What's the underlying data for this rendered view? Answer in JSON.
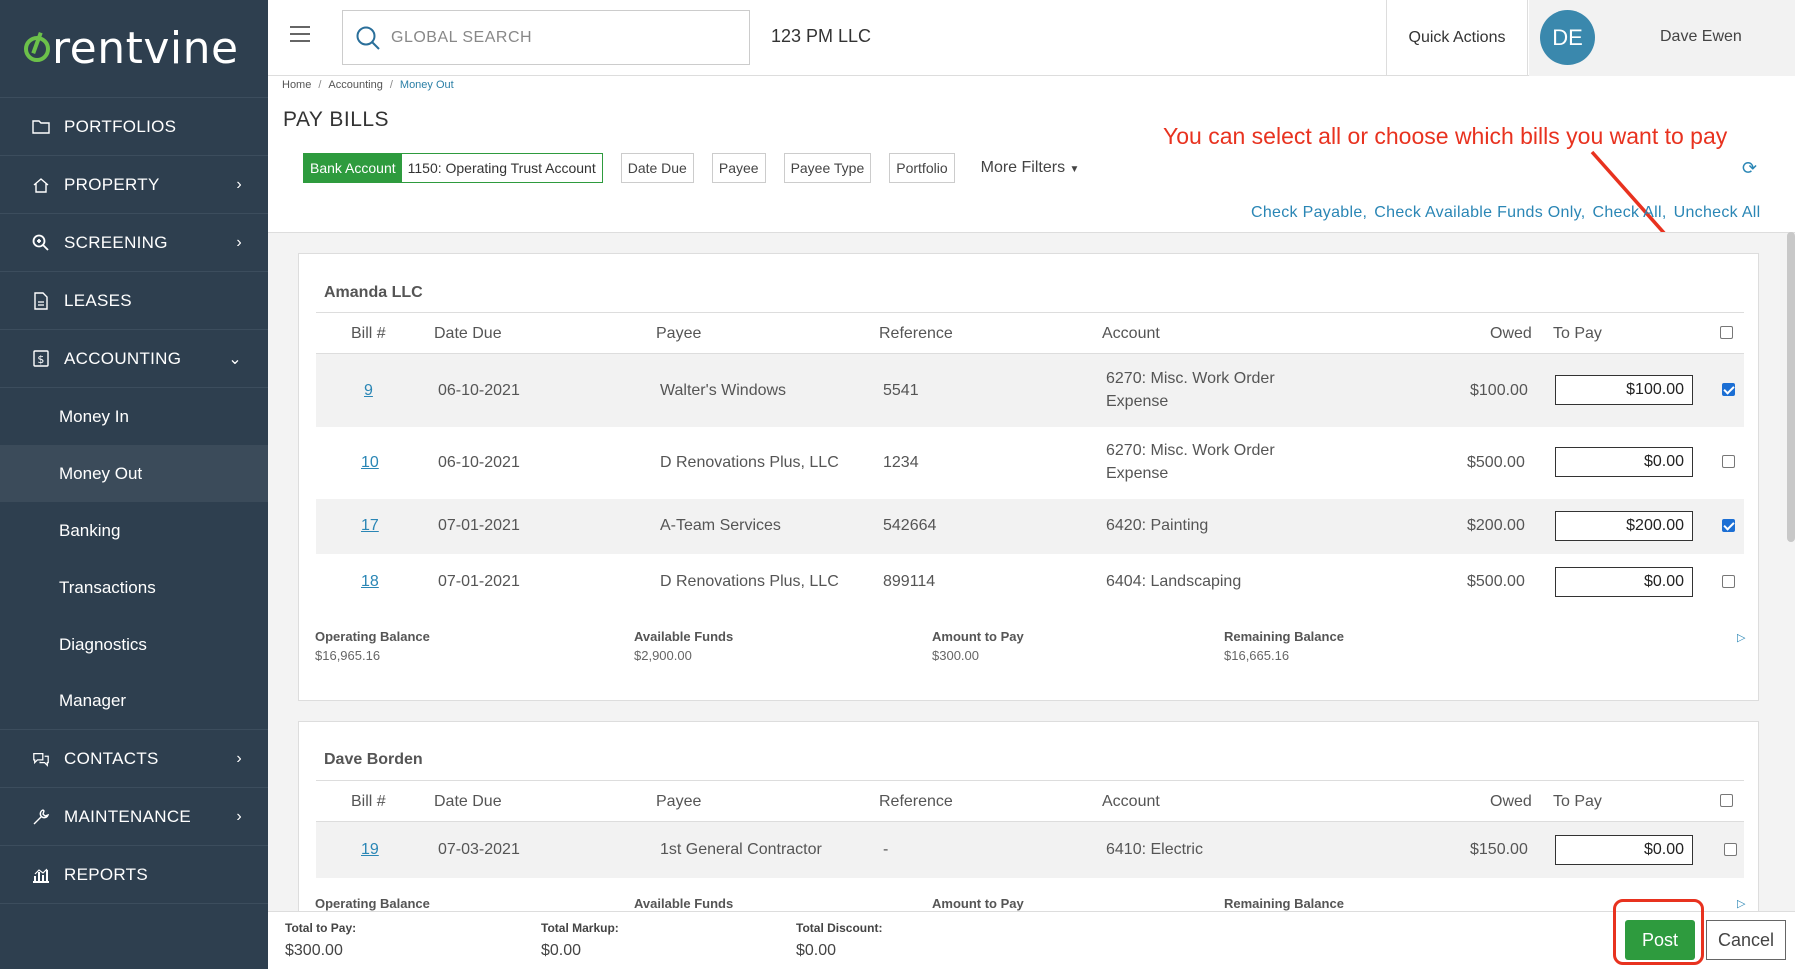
{
  "sidebar": {
    "brand": "rentvine",
    "items": [
      {
        "label": "PORTFOLIOS",
        "icon": "folder-icon"
      },
      {
        "label": "PROPERTY",
        "icon": "home-icon"
      },
      {
        "label": "SCREENING",
        "icon": "search-zoom-icon"
      },
      {
        "label": "LEASES",
        "icon": "document-icon"
      },
      {
        "label": "ACCOUNTING",
        "icon": "dollar-doc-icon"
      }
    ],
    "accounting_sub": [
      "Money In",
      "Money Out",
      "Banking",
      "Transactions",
      "Diagnostics",
      "Manager"
    ],
    "bottom_items": [
      {
        "label": "CONTACTS",
        "icon": "chat-icon"
      },
      {
        "label": "MAINTENANCE",
        "icon": "wrench-icon"
      },
      {
        "label": "REPORTS",
        "icon": "chart-icon"
      }
    ]
  },
  "topbar": {
    "search_placeholder": "GLOBAL SEARCH",
    "company": "123 PM LLC",
    "quick_actions": "Quick Actions",
    "avatar_initials": "DE",
    "user_name": "Dave Ewen"
  },
  "breadcrumb": {
    "home": "Home",
    "accounting": "Accounting",
    "current": "Money Out"
  },
  "page_title": "PAY BILLS",
  "annotation": "You can select all or choose which bills you want to pay",
  "filters": {
    "bank_label": "Bank Account",
    "bank_value": "1150: Operating Trust Account",
    "buttons": [
      "Date Due",
      "Payee",
      "Payee Type",
      "Portfolio"
    ],
    "more": "More Filters"
  },
  "check_links": [
    "Check Payable",
    "Check Available Funds Only",
    "Check All",
    "Uncheck All"
  ],
  "table_headers": {
    "bill": "Bill #",
    "date_due": "Date Due",
    "payee": "Payee",
    "reference": "Reference",
    "account": "Account",
    "owed": "Owed",
    "to_pay": "To Pay"
  },
  "summary_labels": {
    "operating": "Operating Balance",
    "available": "Available Funds",
    "amount": "Amount to Pay",
    "remaining": "Remaining Balance"
  },
  "groups": [
    {
      "name": "Amanda LLC",
      "bills": [
        {
          "bill": "9",
          "date": "06-10-2021",
          "payee": "Walter's Windows",
          "reference": "5541",
          "account_1": "6270: Misc. Work Order",
          "account_2": "Expense",
          "owed": "$100.00",
          "to_pay": "$100.00",
          "checked": true
        },
        {
          "bill": "10",
          "date": "06-10-2021",
          "payee": "D Renovations Plus, LLC",
          "reference": "1234",
          "account_1": "6270: Misc. Work Order",
          "account_2": "Expense",
          "owed": "$500.00",
          "to_pay": "$0.00",
          "checked": false
        },
        {
          "bill": "17",
          "date": "07-01-2021",
          "payee": "A-Team Services",
          "reference": "542664",
          "account_1": "6420: Painting",
          "account_2": "",
          "owed": "$200.00",
          "to_pay": "$200.00",
          "checked": true
        },
        {
          "bill": "18",
          "date": "07-01-2021",
          "payee": "D Renovations Plus, LLC",
          "reference": "899114",
          "account_1": "6404: Landscaping",
          "account_2": "",
          "owed": "$500.00",
          "to_pay": "$0.00",
          "checked": false
        }
      ],
      "summary": {
        "operating": "$16,965.16",
        "available": "$2,900.00",
        "amount": "$300.00",
        "remaining": "$16,665.16"
      }
    },
    {
      "name": "Dave Borden",
      "bills": [
        {
          "bill": "19",
          "date": "07-03-2021",
          "payee": "1st General Contractor",
          "reference": "-",
          "account_1": "6410: Electric",
          "account_2": "",
          "owed": "$150.00",
          "to_pay": "$0.00",
          "checked": false
        }
      ]
    }
  ],
  "footer": {
    "total_to_pay_label": "Total to Pay:",
    "total_to_pay": "$300.00",
    "total_markup_label": "Total Markup:",
    "total_markup": "$0.00",
    "total_discount_label": "Total Discount:",
    "total_discount": "$0.00",
    "post": "Post",
    "cancel": "Cancel"
  },
  "colors": {
    "sidebar": "#2e3f4f",
    "accent_green": "#2e9b3e",
    "link_blue": "#2a86b5",
    "annotation_red": "#e8321f"
  }
}
